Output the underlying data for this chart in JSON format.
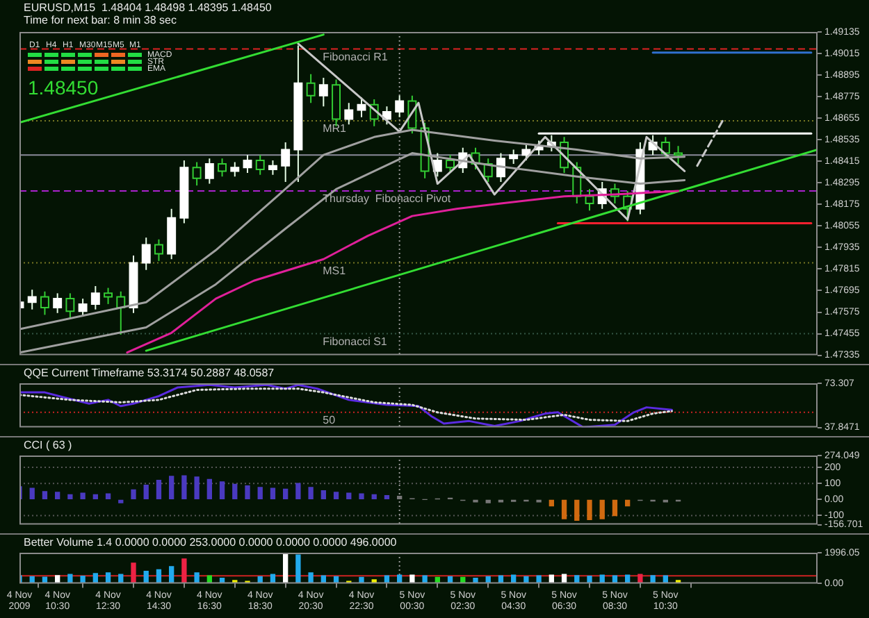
{
  "chart_data": [
    {
      "type": "candlestick",
      "title": "EURUSD,M15  1.48404 1.48498 1.48395 1.48450",
      "subtitle": "Time for next bar: 8 min 38 sec",
      "x": [
        "2009-11-04T09:00",
        "2009-11-04T09:30",
        "2009-11-04T10:00",
        "2009-11-04T10:30",
        "2009-11-04T11:00",
        "2009-11-04T11:30",
        "2009-11-04T12:00",
        "2009-11-04T12:30",
        "2009-11-04T13:00",
        "2009-11-04T13:30",
        "2009-11-04T14:00",
        "2009-11-04T14:30",
        "2009-11-04T15:00",
        "2009-11-04T15:30",
        "2009-11-04T16:00",
        "2009-11-04T16:30",
        "2009-11-04T17:00",
        "2009-11-04T17:30",
        "2009-11-04T18:00",
        "2009-11-04T18:30",
        "2009-11-04T19:00",
        "2009-11-04T19:30",
        "2009-11-04T20:00",
        "2009-11-04T20:30",
        "2009-11-04T21:00",
        "2009-11-04T21:30",
        "2009-11-04T22:00",
        "2009-11-04T22:30",
        "2009-11-04T23:00",
        "2009-11-04T23:30",
        "2009-11-05T00:00",
        "2009-11-05T00:30",
        "2009-11-05T01:00",
        "2009-11-05T01:30",
        "2009-11-05T02:00",
        "2009-11-05T02:30",
        "2009-11-05T03:00",
        "2009-11-05T03:30",
        "2009-11-05T04:00",
        "2009-11-05T04:30",
        "2009-11-05T05:00",
        "2009-11-05T05:30",
        "2009-11-05T06:00",
        "2009-11-05T06:30",
        "2009-11-05T07:00",
        "2009-11-05T07:30",
        "2009-11-05T08:00",
        "2009-11-05T08:30",
        "2009-11-05T09:00",
        "2009-11-05T09:30",
        "2009-11-05T10:00",
        "2009-11-05T10:30",
        "2009-11-05T11:00"
      ],
      "ohlc": [
        [
          1.476,
          1.4767,
          1.4756,
          1.4763
        ],
        [
          1.4763,
          1.477,
          1.4759,
          1.4766
        ],
        [
          1.4766,
          1.4769,
          1.4756,
          1.476
        ],
        [
          1.476,
          1.4768,
          1.4757,
          1.4765
        ],
        [
          1.4765,
          1.4768,
          1.4754,
          1.4758
        ],
        [
          1.4758,
          1.4765,
          1.4755,
          1.4762
        ],
        [
          1.4762,
          1.4772,
          1.4759,
          1.4768
        ],
        [
          1.4768,
          1.4771,
          1.4762,
          1.4766
        ],
        [
          1.4766,
          1.4769,
          1.4745,
          1.476
        ],
        [
          1.476,
          1.4789,
          1.4757,
          1.4785
        ],
        [
          1.4785,
          1.4799,
          1.4781,
          1.4795
        ],
        [
          1.4795,
          1.4798,
          1.4786,
          1.479
        ],
        [
          1.479,
          1.4815,
          1.4787,
          1.481
        ],
        [
          1.481,
          1.4842,
          1.4807,
          1.4838
        ],
        [
          1.4838,
          1.4841,
          1.4828,
          1.4832
        ],
        [
          1.4832,
          1.4843,
          1.4829,
          1.484
        ],
        [
          1.484,
          1.4843,
          1.4833,
          1.4836
        ],
        [
          1.4836,
          1.4841,
          1.4833,
          1.4838
        ],
        [
          1.4838,
          1.4845,
          1.4835,
          1.4842
        ],
        [
          1.4842,
          1.4845,
          1.4834,
          1.4837
        ],
        [
          1.4837,
          1.4842,
          1.4834,
          1.4839
        ],
        [
          1.4839,
          1.4852,
          1.483,
          1.4848
        ],
        [
          1.4848,
          1.4906,
          1.483,
          1.4885
        ],
        [
          1.4885,
          1.489,
          1.4874,
          1.4878
        ],
        [
          1.4878,
          1.4888,
          1.4872,
          1.4884
        ],
        [
          1.4884,
          1.4887,
          1.4861,
          1.4865
        ],
        [
          1.4865,
          1.4874,
          1.4862,
          1.487
        ],
        [
          1.487,
          1.4877,
          1.4866,
          1.4873
        ],
        [
          1.4873,
          1.4876,
          1.4861,
          1.4865
        ],
        [
          1.4865,
          1.4872,
          1.4862,
          1.4869
        ],
        [
          1.4869,
          1.4878,
          1.4866,
          1.4875
        ],
        [
          1.4875,
          1.4878,
          1.4857,
          1.486
        ],
        [
          1.486,
          1.4863,
          1.4832,
          1.4836
        ],
        [
          1.4836,
          1.4846,
          1.4833,
          1.4842
        ],
        [
          1.4842,
          1.4845,
          1.4835,
          1.4838
        ],
        [
          1.4838,
          1.4849,
          1.4835,
          1.4846
        ],
        [
          1.4846,
          1.4849,
          1.4837,
          1.484
        ],
        [
          1.484,
          1.4843,
          1.483,
          1.4833
        ],
        [
          1.4833,
          1.4846,
          1.483,
          1.4843
        ],
        [
          1.4843,
          1.4848,
          1.484,
          1.4845
        ],
        [
          1.4845,
          1.4851,
          1.4842,
          1.4848
        ],
        [
          1.4848,
          1.4853,
          1.4845,
          1.485
        ],
        [
          1.485,
          1.4856,
          1.4847,
          1.4852
        ],
        [
          1.4852,
          1.4855,
          1.4835,
          1.4838
        ],
        [
          1.4838,
          1.4841,
          1.4818,
          1.4822
        ],
        [
          1.4822,
          1.4826,
          1.4814,
          1.4818
        ],
        [
          1.4818,
          1.483,
          1.4815,
          1.4826
        ],
        [
          1.4826,
          1.4829,
          1.4818,
          1.4822
        ],
        [
          1.4822,
          1.4825,
          1.4808,
          1.4815
        ],
        [
          1.4815,
          1.4852,
          1.4812,
          1.4848
        ],
        [
          1.4848,
          1.4856,
          1.4845,
          1.4852
        ],
        [
          1.4852,
          1.4855,
          1.4843,
          1.4846
        ],
        [
          1.4846,
          1.485,
          1.484,
          1.4845
        ]
      ],
      "xlim": [
        "2009-11-04T09:00",
        "2009-11-05T16:30"
      ],
      "ylim": [
        1.47335,
        1.49135
      ],
      "yticks": [
        1.49135,
        1.49015,
        1.48895,
        1.48775,
        1.48655,
        1.48535,
        1.48415,
        1.48295,
        1.48175,
        1.48055,
        1.47935,
        1.47815,
        1.47695,
        1.47575,
        1.47455,
        1.47335
      ],
      "tick_labels": "y",
      "annotations": [
        "D1",
        "H4",
        "H1",
        "M30",
        "M15",
        "M5",
        "M1",
        "MACD",
        "STR",
        "EMA",
        "1.48450"
      ],
      "ref_lines": [
        {
          "axis": "y",
          "value": 1.4904,
          "label": "Fibonacci R1",
          "color": "#dd2222",
          "line_style": "dashed"
        },
        {
          "axis": "y",
          "value": 1.4864,
          "label": "MR1",
          "color": "#777722",
          "line_style": "dotted"
        },
        {
          "axis": "y",
          "value": 1.4845,
          "label": null,
          "color": "#8a8a9a",
          "line_style": "solid"
        },
        {
          "axis": "y",
          "value": 1.4825,
          "label": "Thursday  Fibonacci Pivot",
          "color": "#aa22cc",
          "line_style": "dashed"
        },
        {
          "axis": "y",
          "value": 1.4785,
          "label": "MS1",
          "color": "#777722",
          "line_style": "dotted"
        },
        {
          "axis": "y",
          "value": 1.47455,
          "label": "Fibonacci S1",
          "color": "#335544",
          "line_style": "dotted"
        },
        {
          "axis": "x",
          "value": "2009-11-05T00:00",
          "label": null,
          "color": "#999999",
          "line_style": "dotted"
        }
      ],
      "series": [
        {
          "type": "line",
          "color": "#e0209a",
          "x": [
            "2009-11-04T13:15",
            "2009-11-04T15:00",
            "2009-11-04T16:45",
            "2009-11-04T18:15",
            "2009-11-04T21:00",
            "2009-11-04T22:45",
            "2009-11-05T00:30",
            "2009-11-05T02:15",
            "2009-11-05T04:00",
            "2009-11-05T06:30",
            "2009-11-05T08:30",
            "2009-11-05T11:00"
          ],
          "values": [
            1.4735,
            1.4746,
            1.4765,
            1.4775,
            1.4787,
            1.48,
            1.4811,
            1.4815,
            1.4818,
            1.4822,
            1.4823,
            1.4825
          ]
        },
        {
          "type": "line",
          "color": "#a0a0a0",
          "x": [
            "2009-11-04T09:00",
            "2009-11-04T14:00",
            "2009-11-04T16:45",
            "2009-11-04T19:15",
            "2009-11-04T21:00",
            "2009-11-04T23:00",
            "2009-11-05T00:30",
            "2009-11-05T03:45",
            "2009-11-05T07:00",
            "2009-11-05T09:30",
            "2009-11-05T11:15"
          ],
          "values": [
            1.4748,
            1.4763,
            1.4792,
            1.4823,
            1.4845,
            1.4855,
            1.4859,
            1.4853,
            1.4848,
            1.4843,
            1.4844
          ]
        },
        {
          "type": "line",
          "color": "#a0a0a0",
          "x": [
            "2009-11-04T09:00",
            "2009-11-04T14:00",
            "2009-11-04T16:45",
            "2009-11-04T19:30",
            "2009-11-04T21:30",
            "2009-11-05T00:30",
            "2009-11-05T03:45",
            "2009-11-05T07:00",
            "2009-11-05T09:30",
            "2009-11-05T11:15"
          ],
          "values": [
            1.4735,
            1.4749,
            1.4773,
            1.4804,
            1.4826,
            1.4846,
            1.4839,
            1.4833,
            1.4829,
            1.4831
          ]
        },
        {
          "type": "line",
          "color": "#33dd33",
          "x": [
            "2009-11-04T14:00",
            "2009-11-05T16:30"
          ],
          "values": [
            1.4736,
            1.4848
          ]
        },
        {
          "type": "line",
          "color": "#33dd33",
          "x": [
            "2009-11-04T09:00",
            "2009-11-04T21:00"
          ],
          "values": [
            1.4863,
            1.4912
          ]
        },
        {
          "type": "line",
          "color": "#c8c8c8",
          "x": [
            "2009-11-04T20:00",
            "2009-11-05T00:00",
            "2009-11-05T00:45",
            "2009-11-05T01:30",
            "2009-11-05T02:45",
            "2009-11-05T03:45",
            "2009-11-05T05:45",
            "2009-11-05T09:00",
            "2009-11-05T09:45",
            "2009-11-05T11:15"
          ],
          "values": [
            1.4907,
            1.4858,
            1.4874,
            1.4829,
            1.4845,
            1.4823,
            1.4855,
            1.4809,
            1.4855,
            1.4836
          ]
        },
        {
          "type": "line",
          "color": "#c8c8c8",
          "line_style": "dashed",
          "x": [
            "2009-11-05T11:45",
            "2009-11-05T12:45"
          ],
          "values": [
            1.4839,
            1.4864
          ]
        },
        {
          "type": "line",
          "color": "#ffffff",
          "x": [
            "2009-11-05T05:30",
            "2009-11-05T16:15"
          ],
          "values": [
            1.4857,
            1.4857
          ]
        },
        {
          "type": "line",
          "color": "#3070d0",
          "x": [
            "2009-11-05T10:00",
            "2009-11-05T16:15"
          ],
          "values": [
            1.4902,
            1.4902
          ]
        },
        {
          "type": "line",
          "color": "#ff2030",
          "x": [
            "2009-11-05T06:15",
            "2009-11-05T16:15"
          ],
          "values": [
            1.4807,
            1.4807
          ]
        }
      ]
    },
    {
      "type": "line",
      "title": "QQE Current Timeframe 53.3174 50.2887 48.0587",
      "xlim": [
        "2009-11-04T09:00",
        "2009-11-05T16:30"
      ],
      "ylim": [
        37.8471,
        73.307
      ],
      "yticks": [
        73.307,
        37.8471
      ],
      "tick_labels": "y",
      "ref_lines": [
        {
          "axis": "y",
          "value": 50,
          "label": "50",
          "color": "#cc2222",
          "line_style": "dotted"
        },
        {
          "axis": "x",
          "value": "2009-11-05T00:00",
          "label": null,
          "color": "#999999",
          "line_style": "dotted"
        }
      ],
      "series": [
        {
          "color": "#dddddd",
          "line_style": "dotted",
          "x": [
            "2009-11-04T09:00",
            "2009-11-04T11:00",
            "2009-11-04T13:00",
            "2009-11-04T14:30",
            "2009-11-04T16:00",
            "2009-11-04T18:00",
            "2009-11-04T20:00",
            "2009-11-04T21:00",
            "2009-11-04T23:00",
            "2009-11-05T00:30",
            "2009-11-05T01:30",
            "2009-11-05T03:00",
            "2009-11-05T05:00",
            "2009-11-05T06:30",
            "2009-11-05T07:30",
            "2009-11-05T09:00",
            "2009-11-05T10:00",
            "2009-11-05T10:45"
          ],
          "values": [
            64,
            60,
            58,
            60,
            68,
            69,
            69,
            66,
            58,
            56,
            50,
            45,
            44,
            48,
            44,
            43,
            49,
            51
          ]
        },
        {
          "color": "#5a2be0",
          "x": [
            "2009-11-04T09:00",
            "2009-11-04T10:00",
            "2009-11-04T10:45",
            "2009-11-04T11:45",
            "2009-11-04T12:30",
            "2009-11-04T13:00",
            "2009-11-04T13:30",
            "2009-11-04T14:00",
            "2009-11-04T14:30",
            "2009-11-04T15:15",
            "2009-11-04T16:30",
            "2009-11-04T17:30",
            "2009-11-04T18:45",
            "2009-11-04T19:30",
            "2009-11-04T20:00",
            "2009-11-04T20:45",
            "2009-11-04T22:00",
            "2009-11-04T23:30",
            "2009-11-05T00:45",
            "2009-11-05T01:15",
            "2009-11-05T01:45",
            "2009-11-05T02:45",
            "2009-11-05T03:45",
            "2009-11-05T04:45",
            "2009-11-05T05:45",
            "2009-11-05T06:15",
            "2009-11-05T07:15",
            "2009-11-05T08:30",
            "2009-11-05T09:15",
            "2009-11-05T09:45",
            "2009-11-05T10:45"
          ],
          "values": [
            66,
            66,
            62,
            57,
            60,
            55,
            57,
            60,
            63,
            70,
            72,
            70,
            72,
            69,
            72,
            69,
            60,
            56,
            55,
            47,
            41,
            43,
            39,
            43,
            49,
            50,
            38,
            40,
            50,
            54,
            52
          ]
        }
      ]
    },
    {
      "type": "bar",
      "title": "CCI ( 63 )",
      "x": [
        "2009-11-04T09:00",
        "2009-11-04T09:30",
        "2009-11-04T10:00",
        "2009-11-04T10:30",
        "2009-11-04T11:00",
        "2009-11-04T11:30",
        "2009-11-04T12:00",
        "2009-11-04T12:30",
        "2009-11-04T13:00",
        "2009-11-04T13:30",
        "2009-11-04T14:00",
        "2009-11-04T14:30",
        "2009-11-04T15:00",
        "2009-11-04T15:30",
        "2009-11-04T16:00",
        "2009-11-04T16:30",
        "2009-11-04T17:00",
        "2009-11-04T17:30",
        "2009-11-04T18:00",
        "2009-11-04T18:30",
        "2009-11-04T19:00",
        "2009-11-04T19:30",
        "2009-11-04T20:00",
        "2009-11-04T20:30",
        "2009-11-04T21:00",
        "2009-11-04T21:30",
        "2009-11-04T22:00",
        "2009-11-04T22:30",
        "2009-11-04T23:00",
        "2009-11-04T23:30",
        "2009-11-05T00:00",
        "2009-11-05T00:30",
        "2009-11-05T01:00",
        "2009-11-05T01:30",
        "2009-11-05T02:00",
        "2009-11-05T02:30",
        "2009-11-05T03:00",
        "2009-11-05T03:30",
        "2009-11-05T04:00",
        "2009-11-05T04:30",
        "2009-11-05T05:00",
        "2009-11-05T05:30",
        "2009-11-05T06:00",
        "2009-11-05T06:30",
        "2009-11-05T07:00",
        "2009-11-05T07:30",
        "2009-11-05T08:00",
        "2009-11-05T08:30",
        "2009-11-05T09:00",
        "2009-11-05T09:30",
        "2009-11-05T10:00",
        "2009-11-05T10:30",
        "2009-11-05T11:00"
      ],
      "xlim": [
        "2009-11-04T09:00",
        "2009-11-05T16:30"
      ],
      "ylim": [
        -156.701,
        274.049
      ],
      "yticks": [
        274.049,
        200,
        100,
        {
          "value": 0,
          "label": "0.00"
        },
        -100,
        -156.701
      ],
      "tick_labels": "y",
      "ref_lines": [
        {
          "axis": "y",
          "value": 200,
          "label": null,
          "color": "#555555",
          "line_style": "dotted"
        },
        {
          "axis": "y",
          "value": 100,
          "label": null,
          "color": "#555555",
          "line_style": "dotted"
        },
        {
          "axis": "y",
          "value": -100,
          "label": null,
          "color": "#555555",
          "line_style": "dotted"
        },
        {
          "axis": "x",
          "value": "2009-11-05T00:00",
          "label": null,
          "color": "#999999",
          "line_style": "dotted"
        }
      ],
      "series": [
        {
          "values": [
            80,
            70,
            50,
            45,
            30,
            40,
            30,
            35,
            -20,
            60,
            90,
            120,
            145,
            148,
            140,
            125,
            110,
            95,
            85,
            75,
            70,
            65,
            100,
            75,
            55,
            45,
            40,
            35,
            30,
            25,
            20,
            5,
            0,
            3,
            8,
            -5,
            -15,
            -20,
            -15,
            -12,
            -10,
            -15,
            -40,
            -120,
            -130,
            -125,
            -120,
            -100,
            -40,
            -5,
            -10,
            -15,
            -10
          ],
          "colors": [
            "#4a3ac0",
            "#4a3ac0",
            "#4a3ac0",
            "#4a3ac0",
            "#4a3ac0",
            "#4a3ac0",
            "#4a3ac0",
            "#4a3ac0",
            "#4a3ac0",
            "#4a3ac0",
            "#4a3ac0",
            "#4a3ac0",
            "#4a3ac0",
            "#4a3ac0",
            "#4a3ac0",
            "#4a3ac0",
            "#4a3ac0",
            "#4a3ac0",
            "#4a3ac0",
            "#4a3ac0",
            "#4a3ac0",
            "#4a3ac0",
            "#4a3ac0",
            "#4a3ac0",
            "#4a3ac0",
            "#4a3ac0",
            "#4a3ac0",
            "#4a3ac0",
            "#4a3ac0",
            "#4a3ac0",
            "#777777",
            "#777777",
            "#777777",
            "#777777",
            "#777777",
            "#777777",
            "#777777",
            "#777777",
            "#777777",
            "#777777",
            "#777777",
            "#777777",
            "#d06a10",
            "#d06a10",
            "#d06a10",
            "#d06a10",
            "#d06a10",
            "#d06a10",
            "#d06a10",
            "#777777",
            "#777777",
            "#777777",
            "#777777"
          ]
        }
      ]
    },
    {
      "type": "bar",
      "title": "Better Volume 1.4 0.0000 0.0000 253.0000 0.0000 0.0000 0.0000 496.0000",
      "x": [
        "2009-11-04T09:00",
        "2009-11-04T09:30",
        "2009-11-04T10:00",
        "2009-11-04T10:30",
        "2009-11-04T11:00",
        "2009-11-04T11:30",
        "2009-11-04T12:00",
        "2009-11-04T12:30",
        "2009-11-04T13:00",
        "2009-11-04T13:30",
        "2009-11-04T14:00",
        "2009-11-04T14:30",
        "2009-11-04T15:00",
        "2009-11-04T15:30",
        "2009-11-04T16:00",
        "2009-11-04T16:30",
        "2009-11-04T17:00",
        "2009-11-04T17:30",
        "2009-11-04T18:00",
        "2009-11-04T18:30",
        "2009-11-04T19:00",
        "2009-11-04T19:30",
        "2009-11-04T20:00",
        "2009-11-04T20:30",
        "2009-11-04T21:00",
        "2009-11-04T21:30",
        "2009-11-04T22:00",
        "2009-11-04T22:30",
        "2009-11-04T23:00",
        "2009-11-04T23:30",
        "2009-11-05T00:00",
        "2009-11-05T00:30",
        "2009-11-05T01:00",
        "2009-11-05T01:30",
        "2009-11-05T02:00",
        "2009-11-05T02:30",
        "2009-11-05T03:00",
        "2009-11-05T03:30",
        "2009-11-05T04:00",
        "2009-11-05T04:30",
        "2009-11-05T05:00",
        "2009-11-05T05:30",
        "2009-11-05T06:00",
        "2009-11-05T06:30",
        "2009-11-05T07:00",
        "2009-11-05T07:30",
        "2009-11-05T08:00",
        "2009-11-05T08:30",
        "2009-11-05T09:00",
        "2009-11-05T09:30",
        "2009-11-05T10:00",
        "2009-11-05T10:30",
        "2009-11-05T11:00"
      ],
      "xlim": [
        "2009-11-04T09:00",
        "2009-11-05T16:30"
      ],
      "xticks": [
        {
          "value": "2009-11-04T09:00",
          "label": "4 Nov 2009"
        },
        {
          "value": "2009-11-04T10:30",
          "label": "4 Nov 10:30"
        },
        {
          "value": "2009-11-04T12:30",
          "label": "4 Nov 12:30"
        },
        {
          "value": "2009-11-04T14:30",
          "label": "4 Nov 14:30"
        },
        {
          "value": "2009-11-04T16:30",
          "label": "4 Nov 16:30"
        },
        {
          "value": "2009-11-04T18:30",
          "label": "4 Nov 18:30"
        },
        {
          "value": "2009-11-04T20:30",
          "label": "4 Nov 20:30"
        },
        {
          "value": "2009-11-04T22:30",
          "label": "4 Nov 22:30"
        },
        {
          "value": "2009-11-05T00:30",
          "label": "5 Nov 00:30"
        },
        {
          "value": "2009-11-05T02:30",
          "label": "5 Nov 02:30"
        },
        {
          "value": "2009-11-05T04:30",
          "label": "5 Nov 04:30"
        },
        {
          "value": "2009-11-05T06:30",
          "label": "5 Nov 06:30"
        },
        {
          "value": "2009-11-05T08:30",
          "label": "5 Nov 08:30"
        },
        {
          "value": "2009-11-05T10:30",
          "label": "5 Nov 10:30"
        }
      ],
      "ylim": [
        0,
        1996.05
      ],
      "yticks": [
        1996.05,
        {
          "value": 0,
          "label": "0.00"
        }
      ],
      "ref_lines": [
        {
          "axis": "y",
          "value": 496,
          "label": null,
          "color": "#cc2222",
          "line_style": "solid"
        },
        {
          "axis": "x",
          "value": "2009-11-05T00:00",
          "label": null,
          "color": "#999999",
          "line_style": "dotted"
        }
      ],
      "series": [
        {
          "values": [
            500,
            450,
            420,
            520,
            600,
            480,
            650,
            700,
            600,
            1330,
            800,
            900,
            1100,
            1600,
            700,
            500,
            350,
            200,
            150,
            450,
            600,
            1990,
            1850,
            700,
            500,
            450,
            150,
            400,
            250,
            500,
            550,
            550,
            500,
            400,
            450,
            400,
            350,
            450,
            500,
            550,
            450,
            500,
            550,
            600,
            520,
            480,
            550,
            500,
            550,
            600,
            520,
            500,
            200
          ],
          "colors": [
            "#22aaee",
            "#22aaee",
            "#22aaee",
            "#ffffff",
            "#22aaee",
            "#22aaee",
            "#22aaee",
            "#22aaee",
            "#22aaee",
            "#ee2244",
            "#22aaee",
            "#22aaee",
            "#22aaee",
            "#ee2244",
            "#22aaee",
            "#22dd22",
            "#22aaee",
            "#eeee00",
            "#eeee00",
            "#22aaee",
            "#22aaee",
            "#ffffff",
            "#22aaee",
            "#22aaee",
            "#22aaee",
            "#22aaee",
            "#eeee00",
            "#22aaee",
            "#eeee00",
            "#22aaee",
            "#22aaee",
            "#ffffff",
            "#22aaee",
            "#22dd22",
            "#22aaee",
            "#22dd22",
            "#22aaee",
            "#22aaee",
            "#22aaee",
            "#22aaee",
            "#22aaee",
            "#22aaee",
            "#ffffff",
            "#ffffff",
            "#22aaee",
            "#22aaee",
            "#22aaee",
            "#22aaee",
            "#22aaee",
            "#ee2244",
            "#22aaee",
            "#22aaee",
            "#eeee00"
          ]
        }
      ]
    }
  ]
}
